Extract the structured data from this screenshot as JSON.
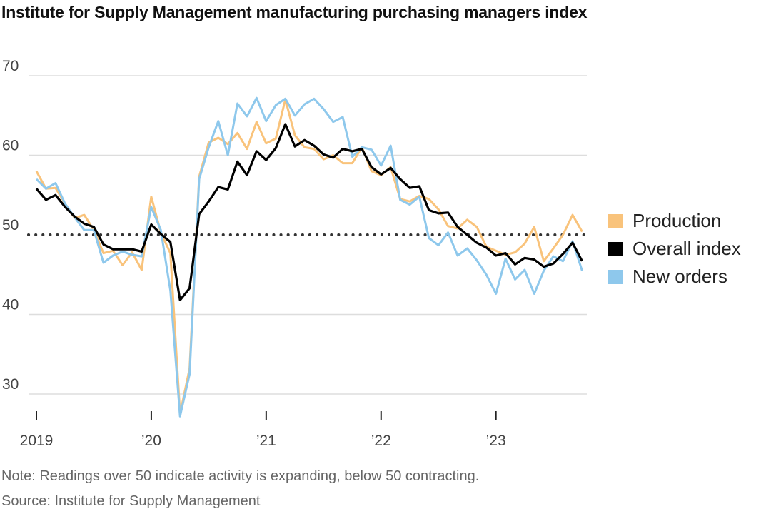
{
  "chart_data": {
    "type": "line",
    "title": "Institute for Supply Management manufacturing purchasing managers index",
    "x_start": "2019-01",
    "frequency": "monthly",
    "x_tick_labels": [
      "2019",
      "’20",
      "’21",
      "’22",
      "’23"
    ],
    "y_ticks": [
      30,
      40,
      50,
      60,
      70
    ],
    "ylim": [
      27,
      71
    ],
    "reference_line": 50,
    "grid": true,
    "legend_position": "right",
    "series": [
      {
        "name": "Production",
        "color": "#f9c37b",
        "values": [
          58.0,
          55.8,
          55.9,
          53.9,
          52.1,
          52.5,
          50.6,
          47.7,
          48.0,
          46.2,
          47.8,
          45.6,
          54.8,
          50.3,
          47.7,
          27.5,
          33.2,
          57.3,
          61.6,
          62.2,
          61.4,
          62.8,
          60.8,
          64.2,
          61.5,
          62.1,
          67.0,
          62.5,
          61.0,
          60.8,
          59.5,
          60.0,
          59.0,
          59.0,
          61.0,
          58.0,
          57.5,
          58.5,
          54.5,
          54.2,
          54.9,
          54.5,
          53.2,
          51.1,
          50.8,
          51.9,
          51.0,
          48.5,
          48.0,
          47.5,
          47.8,
          48.9,
          51.0,
          46.7,
          48.3,
          50.0,
          52.5,
          50.4
        ]
      },
      {
        "name": "Overall index",
        "color": "#000000",
        "values": [
          55.8,
          54.4,
          55.0,
          53.5,
          52.3,
          51.4,
          51.0,
          48.8,
          48.2,
          48.2,
          48.2,
          47.9,
          51.3,
          50.1,
          49.1,
          41.8,
          43.3,
          52.6,
          54.2,
          56.0,
          55.7,
          59.2,
          57.5,
          60.5,
          59.4,
          60.9,
          63.9,
          61.1,
          61.9,
          61.2,
          60.1,
          59.7,
          60.8,
          60.5,
          60.8,
          58.5,
          57.6,
          58.4,
          57.0,
          55.9,
          56.1,
          53.1,
          52.7,
          52.8,
          51.0,
          50.0,
          49.0,
          48.4,
          47.4,
          47.7,
          46.3,
          47.1,
          46.9,
          46.0,
          46.4,
          47.6,
          49.0,
          46.7
        ]
      },
      {
        "name": "New orders",
        "color": "#8ec8ec",
        "values": [
          57.0,
          55.8,
          56.5,
          53.9,
          52.2,
          50.6,
          50.6,
          46.5,
          47.4,
          47.9,
          47.5,
          47.3,
          53.5,
          50.6,
          43.0,
          27.2,
          32.5,
          57.0,
          61.0,
          64.3,
          60.0,
          66.5,
          64.9,
          67.2,
          64.3,
          66.3,
          67.1,
          65.0,
          66.4,
          67.1,
          65.8,
          64.2,
          64.8,
          59.8,
          61.0,
          60.7,
          58.7,
          61.2,
          54.4,
          53.8,
          54.8,
          49.6,
          48.7,
          50.3,
          47.4,
          48.3,
          46.8,
          45.0,
          42.6,
          47.0,
          44.4,
          45.6,
          42.6,
          45.5,
          47.3,
          46.7,
          49.2,
          45.5
        ]
      }
    ]
  },
  "notes": {
    "note": "Note: Readings over 50 indicate activity is expanding, below 50 contracting.",
    "source": "Source: Institute for Supply Management"
  }
}
